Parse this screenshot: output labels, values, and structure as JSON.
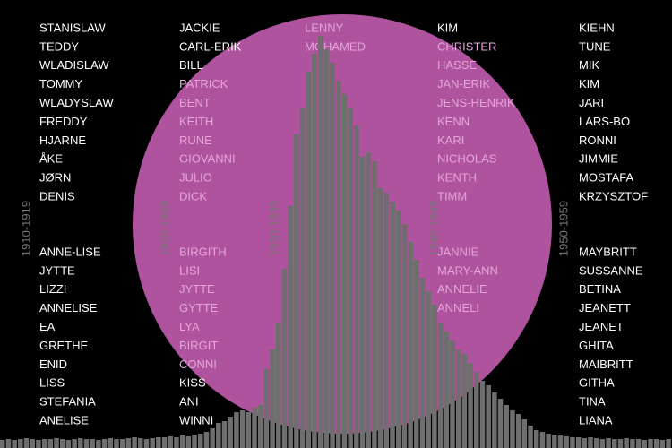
{
  "columns": [
    {
      "decade": "1910-1919",
      "male": [
        "STANISLAW",
        "TEDDY",
        "WLADISLAW",
        "TOMMY",
        "WLADYSLAW",
        "FREDDY",
        "HJARNE",
        "ÅKE",
        "JØRN",
        "DENIS"
      ],
      "female": [
        "ANNE-LISE",
        "JYTTE",
        "LIZZI",
        "ANNELISE",
        "EA",
        "GRETHE",
        "ENID",
        "LISS",
        "STEFANIA",
        "ANELISE"
      ]
    },
    {
      "decade": "1920-1929",
      "male": [
        "JACKIE",
        "CARL-ERIK",
        "BILL",
        "PATRICK",
        "BENT",
        "KEITH",
        "RUNE",
        "GIOVANNI",
        "JULIO",
        "DICK"
      ],
      "female": [
        "BIRGITH",
        "LISI",
        "JYTTE",
        "GYTTE",
        "LYA",
        "BIRGIT",
        "CONNI",
        "KISS",
        "ANI",
        "WINNI"
      ]
    },
    {
      "decade": "1930-1939",
      "male": [
        "LENNY",
        "MOHAMED"
      ],
      "female": []
    },
    {
      "decade": "1940-1949",
      "male": [
        "KIM",
        "CHRISTER",
        "HASSE",
        "JAN-ERIK",
        "JENS-HENRIK",
        "KENN",
        "KARI",
        "NICHOLAS",
        "KENTH",
        "TIMM"
      ],
      "female": [
        "JANNIE",
        "MARY-ANN",
        "ANNELIE",
        "ANNELI"
      ]
    },
    {
      "decade": "1950-1959",
      "male": [
        "KIEHN",
        "TUNE",
        "MIK",
        "KIM",
        "JARI",
        "LARS-BO",
        "RONNI",
        "JIMMIE",
        "MOSTAFA",
        "KRZYSZTOF"
      ],
      "female": [
        "MAYBRITT",
        "SUSSANNE",
        "BETINA",
        "JEANETT",
        "JEANET",
        "GHITA",
        "MAIBRITT",
        "GITHA",
        "TINA",
        "LIANA"
      ]
    }
  ],
  "histogram": {
    "ylim": [
      0,
      500
    ],
    "inside_color": "#ffffff",
    "outside_color": "#6e6e6e",
    "circle_color": "#b0539e",
    "values": [
      9,
      10,
      9,
      10,
      11,
      10,
      9,
      10,
      10,
      11,
      10,
      9,
      10,
      11,
      10,
      10,
      9,
      10,
      11,
      10,
      10,
      11,
      12,
      11,
      10,
      11,
      12,
      12,
      13,
      12,
      14,
      13,
      15,
      16,
      18,
      22,
      28,
      30,
      35,
      40,
      42,
      40,
      45,
      48,
      88,
      110,
      140,
      200,
      270,
      350,
      380,
      420,
      440,
      460,
      445,
      430,
      410,
      395,
      380,
      360,
      325,
      330,
      320,
      290,
      285,
      275,
      265,
      250,
      230,
      210,
      190,
      175,
      160,
      140,
      130,
      120,
      110,
      105,
      95,
      85,
      75,
      70,
      62,
      55,
      48,
      42,
      38,
      32,
      25,
      20,
      18,
      16,
      15,
      14,
      13,
      12,
      12,
      11,
      12,
      11,
      10,
      11,
      10,
      10,
      11,
      10,
      10,
      9,
      10,
      10,
      9,
      10
    ]
  }
}
